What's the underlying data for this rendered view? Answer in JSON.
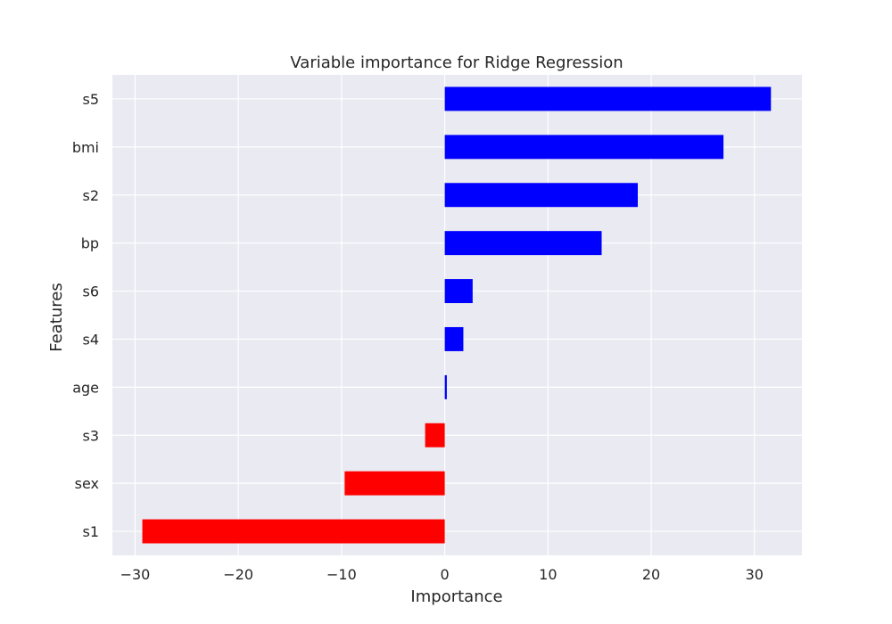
{
  "chart_data": {
    "type": "bar",
    "orientation": "horizontal",
    "title": "Variable importance for Ridge Regression",
    "xlabel": "Importance",
    "ylabel": "Features",
    "categories": [
      "s5",
      "bmi",
      "s2",
      "bp",
      "s6",
      "s4",
      "age",
      "s3",
      "sex",
      "s1"
    ],
    "values": [
      31.6,
      27.0,
      18.7,
      15.2,
      2.7,
      1.8,
      0.2,
      -1.9,
      -9.7,
      -29.3
    ],
    "xlim": [
      -32.2,
      34.6
    ],
    "xticks": [
      -30,
      -20,
      -10,
      0,
      10,
      20,
      30
    ],
    "xtick_labels": [
      "−30",
      "−20",
      "−10",
      "0",
      "10",
      "20",
      "30"
    ],
    "grid": true,
    "colors": {
      "positive": "#0000ff",
      "negative": "#ff0000",
      "plot_background": "#eaeaf2",
      "grid": "#ffffff",
      "text": "#262626"
    }
  }
}
